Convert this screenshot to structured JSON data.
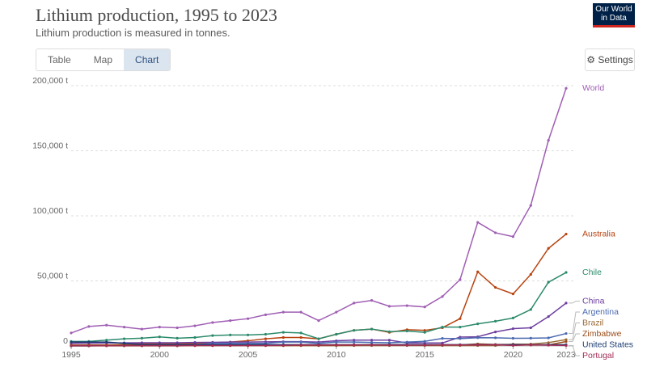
{
  "header": {
    "logo": "Our World in Data",
    "tabs": [
      "Table",
      "Map",
      "Chart"
    ],
    "settings": "Settings"
  },
  "chart_data": {
    "type": "line",
    "title": "Lithium production, 1995 to 2023",
    "subtitle": "Lithium production is measured in tonnes.",
    "x": [
      1995,
      1996,
      1997,
      1998,
      1999,
      2000,
      2001,
      2002,
      2003,
      2004,
      2005,
      2006,
      2007,
      2008,
      2009,
      2010,
      2011,
      2012,
      2013,
      2014,
      2015,
      2016,
      2017,
      2018,
      2019,
      2020,
      2021,
      2022,
      2023
    ],
    "xlim": [
      1995,
      2023
    ],
    "xticks": [
      1995,
      2000,
      2005,
      2010,
      2015,
      2020,
      2023
    ],
    "ylim": [
      0,
      200000
    ],
    "yticks": [
      {
        "value": 0,
        "label": "0"
      },
      {
        "value": 50000,
        "label": "50,000 t"
      },
      {
        "value": 100000,
        "label": "100,000 t"
      },
      {
        "value": 150000,
        "label": "150,000 t"
      },
      {
        "value": 200000,
        "label": "200,000 t"
      }
    ],
    "grid": true,
    "series": [
      {
        "name": "World",
        "color": "#a05fb4",
        "values": [
          10000,
          15000,
          16000,
          14500,
          13000,
          14500,
          14000,
          15500,
          18000,
          19500,
          21000,
          24000,
          26000,
          26000,
          19500,
          26000,
          33000,
          35000,
          30500,
          31000,
          30000,
          38000,
          51000,
          95000,
          87000,
          84000,
          108000,
          158000,
          198000
        ]
      },
      {
        "name": "Australia",
        "color": "#b8420f",
        "values": [
          2000,
          3000,
          2500,
          2000,
          2000,
          2000,
          2000,
          2000,
          2500,
          3000,
          4000,
          5500,
          6500,
          6500,
          5500,
          9000,
          12000,
          13000,
          10500,
          12500,
          12000,
          14000,
          21000,
          57000,
          45000,
          40000,
          55000,
          75000,
          86000
        ]
      },
      {
        "name": "Chile",
        "color": "#2c8a6c",
        "values": [
          3500,
          3500,
          4500,
          5500,
          6000,
          7000,
          6000,
          6500,
          8000,
          8500,
          8500,
          9000,
          10500,
          10000,
          5500,
          9000,
          12000,
          13000,
          11000,
          11500,
          10500,
          14500,
          14500,
          17000,
          19000,
          21500,
          28000,
          49000,
          56500
        ]
      },
      {
        "name": "China",
        "color": "#6e3fa0",
        "values": [
          2000,
          2200,
          2300,
          2400,
          2500,
          2500,
          2500,
          2700,
          2800,
          3000,
          3000,
          3200,
          3300,
          3300,
          3000,
          4000,
          4500,
          4500,
          4500,
          2300,
          2300,
          2300,
          6800,
          7100,
          10800,
          13300,
          14000,
          22600,
          33000
        ]
      },
      {
        "name": "Argentina",
        "color": "#4c6ab0",
        "values": [
          0,
          0,
          300,
          1000,
          1000,
          1000,
          1000,
          1000,
          2000,
          2000,
          2000,
          2000,
          3000,
          3000,
          2000,
          3000,
          3000,
          2700,
          2500,
          3000,
          3600,
          5800,
          5700,
          6400,
          6300,
          5900,
          6000,
          6200,
          9600
        ]
      },
      {
        "name": "Brazil",
        "color": "#9a6b35",
        "values": [
          100,
          100,
          100,
          100,
          100,
          100,
          100,
          200,
          200,
          200,
          200,
          200,
          200,
          200,
          200,
          200,
          300,
          300,
          300,
          300,
          300,
          300,
          300,
          300,
          300,
          1400,
          1500,
          2600,
          4900
        ]
      },
      {
        "name": "Zimbabwe",
        "color": "#9b4e1c",
        "values": [
          700,
          800,
          800,
          900,
          900,
          700,
          700,
          700,
          500,
          500,
          300,
          600,
          300,
          500,
          400,
          500,
          500,
          1000,
          1000,
          900,
          900,
          900,
          800,
          1600,
          1200,
          1200,
          700,
          800,
          3400
        ]
      },
      {
        "name": "United States",
        "color": "#1d3d73",
        "values": [
          3000,
          3000,
          3000,
          2000,
          1000,
          1000,
          1000,
          1000,
          1000,
          1000,
          1000,
          1000,
          1000,
          1000,
          1000,
          1000,
          1000,
          1000,
          1000,
          1000,
          1000,
          1000,
          1000,
          1000,
          1000,
          1000,
          1000,
          1000,
          1000
        ]
      },
      {
        "name": "Portugal",
        "color": "#a32d55",
        "values": [
          200,
          200,
          200,
          200,
          200,
          200,
          200,
          300,
          300,
          300,
          300,
          300,
          500,
          700,
          700,
          800,
          800,
          800,
          600,
          600,
          600,
          800,
          800,
          800,
          900,
          350,
          900,
          600,
          400
        ]
      }
    ]
  }
}
